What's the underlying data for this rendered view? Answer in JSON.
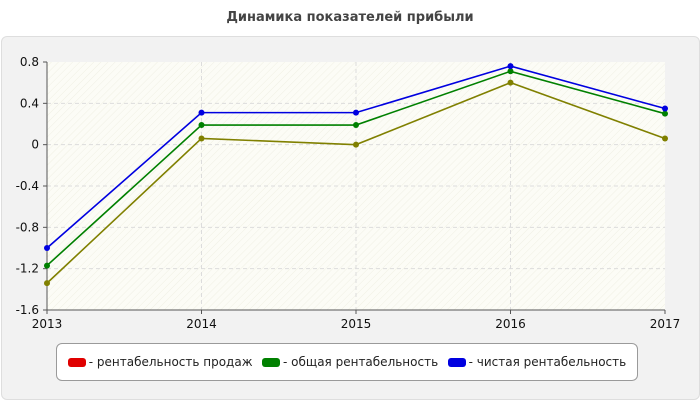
{
  "chart_data": {
    "type": "line",
    "title": "Динамика показателей прибыли",
    "xlabel": "",
    "ylabel": "",
    "x": [
      "2013",
      "2014",
      "2015",
      "2016",
      "2017"
    ],
    "ylim": [
      -1.6,
      0.8
    ],
    "yticks": [
      "0.8",
      "0.4",
      "0",
      "-0.4",
      "-0.8",
      "-1.2",
      "-1.6"
    ],
    "grid": true,
    "legend_position": "bottom",
    "series": [
      {
        "name": "- рентабельность продаж",
        "legend_color": "#e00000",
        "line_color": "#808000",
        "values": [
          -1.34,
          0.06,
          0.0,
          0.6,
          0.06
        ]
      },
      {
        "name": "- общая рентабельность",
        "legend_color": "#008000",
        "line_color": "#008000",
        "values": [
          -1.17,
          0.19,
          0.19,
          0.71,
          0.3
        ]
      },
      {
        "name": "- чистая рентабельность",
        "legend_color": "#0000e0",
        "line_color": "#0000e0",
        "values": [
          -1.0,
          0.31,
          0.31,
          0.76,
          0.35
        ]
      }
    ]
  }
}
